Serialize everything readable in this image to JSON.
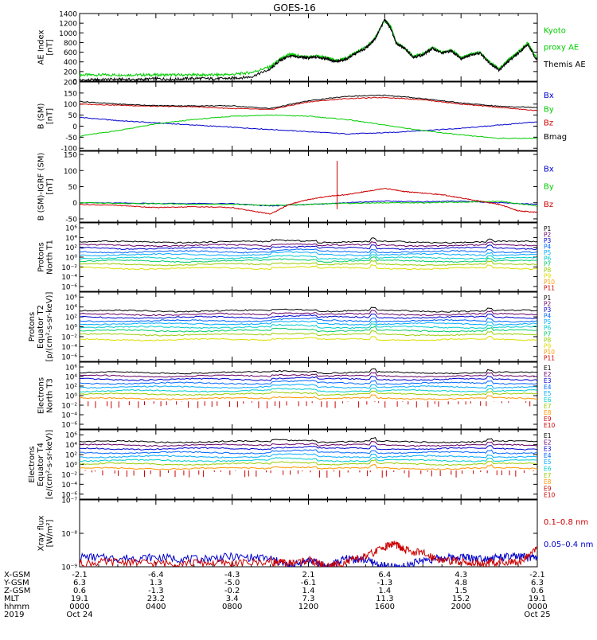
{
  "title": "GOES-16",
  "panels": [
    {
      "id": "ae",
      "ylabel": [
        "AE Index",
        "[nT]"
      ],
      "yticks": [
        "1400",
        "1200",
        "1000",
        "800",
        "600",
        "400",
        "200",
        "0"
      ],
      "yvals": [
        1400,
        1200,
        1000,
        800,
        600,
        400,
        200,
        0
      ],
      "ylim": [
        0,
        1400
      ],
      "legend": [
        {
          "text": "Kyoto",
          "color": "#00cc00"
        },
        {
          "text": "proxy AE",
          "color": "#00cc00"
        },
        {
          "text": "Themis AE",
          "color": "#000000"
        }
      ],
      "series": [
        {
          "name": "Kyoto proxy AE",
          "color": "#00cc00",
          "x": [
            0,
            1,
            2,
            3,
            4,
            5,
            6,
            7,
            8,
            9,
            10,
            10.5,
            11,
            11.5,
            12,
            12.5,
            13,
            13.5,
            14,
            14.5,
            15,
            15.5,
            16,
            16.3,
            16.6,
            17,
            17.5,
            18,
            18.5,
            19,
            19.5,
            20,
            20.5,
            21,
            21.5,
            22,
            22.5,
            23,
            23.5,
            24
          ],
          "y": [
            130,
            130,
            130,
            130,
            130,
            130,
            130,
            130,
            140,
            180,
            300,
            450,
            560,
            520,
            500,
            520,
            480,
            420,
            480,
            600,
            700,
            900,
            1250,
            1150,
            800,
            700,
            520,
            560,
            700,
            600,
            650,
            480,
            560,
            600,
            400,
            250,
            450,
            600,
            800,
            450
          ]
        },
        {
          "name": "Themis AE",
          "color": "#000000",
          "x": [
            0,
            1,
            2,
            3,
            4,
            5,
            6,
            7,
            8,
            9,
            10,
            10.5,
            11,
            11.5,
            12,
            12.5,
            13,
            13.5,
            14,
            14.5,
            15,
            15.5,
            16,
            16.3,
            16.6,
            17,
            17.5,
            18,
            18.5,
            19,
            19.5,
            20,
            20.5,
            21,
            21.5,
            22,
            22.5,
            23,
            23.5,
            24
          ],
          "y": [
            20,
            30,
            40,
            30,
            50,
            40,
            60,
            50,
            60,
            90,
            250,
            430,
            520,
            500,
            480,
            500,
            460,
            400,
            460,
            580,
            680,
            880,
            1280,
            1100,
            780,
            690,
            500,
            540,
            680,
            580,
            630,
            470,
            540,
            580,
            380,
            230,
            420,
            580,
            760,
            420
          ]
        }
      ]
    },
    {
      "id": "bsm",
      "ylabel": [
        "B (SM)",
        "[nT]"
      ],
      "yticks": [
        "200",
        "150",
        "100",
        "50",
        "0",
        "-50",
        "-100"
      ],
      "yvals": [
        200,
        150,
        100,
        50,
        0,
        -50,
        -100
      ],
      "ylim": [
        -110,
        200
      ],
      "legend": [
        {
          "text": "Bx",
          "color": "#0000cc"
        },
        {
          "text": "By",
          "color": "#00cc00"
        },
        {
          "text": "Bz",
          "color": "#cc0000"
        },
        {
          "text": "Bmag",
          "color": "#000000"
        }
      ],
      "series": [
        {
          "name": "Bx",
          "color": "#0000cc",
          "x": [
            0,
            2,
            4,
            6,
            8,
            10,
            12,
            14,
            16,
            18,
            20,
            22,
            24
          ],
          "y": [
            40,
            25,
            15,
            5,
            -5,
            -15,
            -25,
            -35,
            -30,
            -20,
            -10,
            5,
            20
          ]
        },
        {
          "name": "By",
          "color": "#00cc00",
          "x": [
            0,
            2,
            4,
            6,
            8,
            10,
            12,
            14,
            16,
            18,
            20,
            22,
            24
          ],
          "y": [
            -45,
            -20,
            10,
            30,
            45,
            50,
            45,
            30,
            5,
            -20,
            -40,
            -55,
            -55
          ]
        },
        {
          "name": "Bz",
          "color": "#cc0000",
          "x": [
            0,
            2,
            4,
            6,
            8,
            10,
            12,
            14,
            16,
            18,
            20,
            22,
            24
          ],
          "y": [
            100,
            95,
            90,
            88,
            80,
            75,
            110,
            125,
            130,
            120,
            100,
            85,
            70
          ]
        },
        {
          "name": "Bmag",
          "color": "#000000",
          "x": [
            0,
            2,
            4,
            6,
            8,
            10,
            12,
            14,
            16,
            18,
            20,
            22,
            24
          ],
          "y": [
            112,
            100,
            93,
            92,
            92,
            80,
            115,
            135,
            140,
            125,
            105,
            90,
            85
          ]
        }
      ]
    },
    {
      "id": "bigrf",
      "ylabel": [
        "B (SM)-IGRF (SM)",
        "[nT]"
      ],
      "yticks": [
        "150",
        "100",
        "50",
        "0",
        "-50"
      ],
      "yvals": [
        150,
        100,
        50,
        0,
        -50
      ],
      "ylim": [
        -60,
        160
      ],
      "legend": [
        {
          "text": "Bx",
          "color": "#0000cc"
        },
        {
          "text": "By",
          "color": "#00cc00"
        },
        {
          "text": "Bz",
          "color": "#cc0000"
        }
      ],
      "series": [
        {
          "name": "Bx",
          "color": "#0000cc",
          "x": [
            0,
            4,
            8,
            10,
            12,
            14,
            16,
            18,
            20,
            22,
            24
          ],
          "y": [
            0,
            -2,
            -3,
            -10,
            -5,
            0,
            5,
            3,
            5,
            0,
            -5
          ]
        },
        {
          "name": "By",
          "color": "#00cc00",
          "x": [
            0,
            4,
            8,
            10,
            12,
            14,
            16,
            18,
            20,
            22,
            24
          ],
          "y": [
            0,
            -3,
            -5,
            -8,
            -5,
            -2,
            0,
            0,
            2,
            5,
            -10
          ]
        },
        {
          "name": "Bz",
          "color": "#cc0000",
          "x": [
            0,
            2,
            4,
            6,
            8,
            9,
            10,
            11,
            12,
            13,
            14,
            15,
            16,
            17,
            18,
            19,
            20,
            21,
            22,
            23,
            24
          ],
          "y": [
            -5,
            -8,
            -15,
            -12,
            -15,
            -25,
            -35,
            -5,
            10,
            20,
            25,
            35,
            45,
            35,
            30,
            25,
            15,
            5,
            -5,
            -25,
            -30
          ]
        }
      ]
    },
    {
      "id": "pn",
      "ylabel": [
        "Protons",
        "North T1"
      ],
      "log": true,
      "yticks": [
        "10⁶",
        "10⁴",
        "10²",
        "10⁰",
        "10⁻²",
        "10⁻⁴",
        "10⁻⁶"
      ],
      "yvals": [
        6,
        4,
        2,
        0,
        -2,
        -4,
        -6
      ],
      "ylim": [
        -7,
        7
      ],
      "legend": [
        {
          "text": "P1",
          "color": "#000000"
        },
        {
          "text": "P2",
          "color": "#660066"
        },
        {
          "text": "P3",
          "color": "#0000cc"
        },
        {
          "text": "P4",
          "color": "#0066ff"
        },
        {
          "text": "P5",
          "color": "#00aaff"
        },
        {
          "text": "P6",
          "color": "#00cccc"
        },
        {
          "text": "P7",
          "color": "#00cc66"
        },
        {
          "text": "P8",
          "color": "#99cc00"
        },
        {
          "text": "P9",
          "color": "#dddd00"
        },
        {
          "text": "P10",
          "color": "#ff9900"
        },
        {
          "text": "P11",
          "color": "#cc0000"
        }
      ],
      "levels": [
        3.1,
        2.4,
        1.8,
        1.1,
        0.5,
        -0.2,
        -0.8,
        -1.5,
        -2.3
      ],
      "colors": [
        "#000000",
        "#660066",
        "#0000cc",
        "#0066ff",
        "#00aaff",
        "#00cccc",
        "#00cc66",
        "#99cc00",
        "#dddd00"
      ]
    },
    {
      "id": "pe",
      "ylabel": [
        "Protons",
        "Equator T2",
        "[p/(cm²-s-sr-keV)]"
      ],
      "log": true,
      "yticks": [
        "10⁶",
        "10⁴",
        "10²",
        "10⁰",
        "10⁻²",
        "10⁻⁴",
        "10⁻⁶"
      ],
      "yvals": [
        6,
        4,
        2,
        0,
        -2,
        -4,
        -6
      ],
      "ylim": [
        -7,
        7
      ],
      "legend": [
        {
          "text": "P1",
          "color": "#000000"
        },
        {
          "text": "P2",
          "color": "#660066"
        },
        {
          "text": "P3",
          "color": "#0000cc"
        },
        {
          "text": "P4",
          "color": "#0066ff"
        },
        {
          "text": "P5",
          "color": "#00aaff"
        },
        {
          "text": "P6",
          "color": "#00cccc"
        },
        {
          "text": "P7",
          "color": "#00cc66"
        },
        {
          "text": "P8",
          "color": "#99cc00"
        },
        {
          "text": "P9",
          "color": "#dddd00"
        },
        {
          "text": "P10",
          "color": "#ff9900"
        },
        {
          "text": "P11",
          "color": "#cc0000"
        }
      ],
      "levels": [
        3.2,
        2.5,
        1.9,
        1.2,
        0.6,
        -0.1,
        -0.8,
        -1.6,
        -2.6
      ],
      "colors": [
        "#000000",
        "#660066",
        "#0000cc",
        "#0066ff",
        "#00aaff",
        "#00cccc",
        "#00cc66",
        "#99cc00",
        "#dddd00"
      ]
    },
    {
      "id": "en",
      "ylabel": [
        "Electrons",
        "North T3"
      ],
      "log": true,
      "yticks": [
        "10⁶",
        "10⁴",
        "10²",
        "10⁰",
        "10⁻²",
        "10⁻⁴",
        "10⁻⁶"
      ],
      "yvals": [
        6,
        4,
        2,
        0,
        -2,
        -4,
        -6
      ],
      "ylim": [
        -7,
        7
      ],
      "legend": [
        {
          "text": "E1",
          "color": "#000000"
        },
        {
          "text": "E2",
          "color": "#660066"
        },
        {
          "text": "E3",
          "color": "#0000cc"
        },
        {
          "text": "E4",
          "color": "#0066ff"
        },
        {
          "text": "E5",
          "color": "#00aaff"
        },
        {
          "text": "E6",
          "color": "#00cccc"
        },
        {
          "text": "E7",
          "color": "#99cc00"
        },
        {
          "text": "E8",
          "color": "#ff9900"
        },
        {
          "text": "E9",
          "color": "#cc0000"
        },
        {
          "text": "E10",
          "color": "#cc0000"
        }
      ],
      "levels": [
        4.8,
        4.1,
        3.4,
        2.6,
        1.8,
        1.0,
        0.3,
        -0.6
      ],
      "colors": [
        "#000000",
        "#660066",
        "#0000cc",
        "#0066ff",
        "#00aaff",
        "#00cccc",
        "#99cc00",
        "#ff9900"
      ]
    },
    {
      "id": "ee",
      "ylabel": [
        "Electrons",
        "Equator T4",
        "[e/(cm²-s-sr-keV)]"
      ],
      "log": true,
      "yticks": [
        "10⁶",
        "10⁴",
        "10²",
        "10⁰",
        "10⁻²",
        "10⁻⁴",
        "10⁻⁶"
      ],
      "yvals": [
        6,
        4,
        2,
        0,
        -2,
        -4,
        -6
      ],
      "ylim": [
        -7,
        7
      ],
      "legend": [
        {
          "text": "E1",
          "color": "#000000"
        },
        {
          "text": "E2",
          "color": "#660066"
        },
        {
          "text": "E3",
          "color": "#0000cc"
        },
        {
          "text": "E4",
          "color": "#0066ff"
        },
        {
          "text": "E5",
          "color": "#00aaff"
        },
        {
          "text": "E6",
          "color": "#00cccc"
        },
        {
          "text": "E7",
          "color": "#99cc00"
        },
        {
          "text": "E8",
          "color": "#ff9900"
        },
        {
          "text": "E9",
          "color": "#cc0000"
        },
        {
          "text": "E10",
          "color": "#cc0000"
        }
      ],
      "levels": [
        4.6,
        3.9,
        3.2,
        2.4,
        1.6,
        0.8,
        0.1,
        -0.8
      ],
      "colors": [
        "#000000",
        "#660066",
        "#0000cc",
        "#0066ff",
        "#00aaff",
        "#00cccc",
        "#99cc00",
        "#ff9900"
      ]
    },
    {
      "id": "xray",
      "ylabel": [
        "Xray flux",
        "[W/m²]"
      ],
      "log": true,
      "yticks": [
        "10⁻⁷",
        "10⁻⁸",
        "10⁻⁹"
      ],
      "yvals": [
        -7,
        -8,
        -9
      ],
      "ylim": [
        -9,
        -7
      ],
      "legend": [
        {
          "text": "0.1–0.8 nm",
          "color": "#cc0000"
        },
        {
          "text": "0.05–0.4 nm",
          "color": "#0000cc"
        }
      ],
      "series": [
        {
          "name": "0.05–0.4 nm",
          "color": "#0000cc",
          "x": [
            0,
            2,
            4,
            6,
            8,
            10,
            11,
            12,
            13,
            14,
            15,
            16,
            17,
            18,
            19,
            20,
            21,
            22,
            23,
            24
          ],
          "y": [
            -8.7,
            -8.75,
            -8.72,
            -8.78,
            -8.7,
            -8.75,
            -9,
            -8.8,
            -9,
            -8.75,
            -8.8,
            -9,
            -9,
            -8.8,
            -8.75,
            -8.7,
            -8.75,
            -8.72,
            -8.7,
            -8.75
          ]
        },
        {
          "name": "0.1–0.8 nm",
          "color": "#cc0000",
          "x": [
            0,
            2,
            4,
            6,
            8,
            10,
            11,
            12,
            13,
            14,
            15,
            16,
            16.5,
            17,
            18,
            19,
            20,
            21,
            22,
            23,
            24
          ],
          "y": [
            -8.9,
            -8.85,
            -8.9,
            -8.88,
            -8.9,
            -8.85,
            -8.9,
            -8.8,
            -9,
            -8.85,
            -8.7,
            -8.4,
            -8.3,
            -8.5,
            -8.6,
            -8.8,
            -8.85,
            -8.9,
            -8.85,
            -8.9,
            -8.4
          ]
        }
      ]
    }
  ],
  "x_ticks": {
    "rows": [
      {
        "label": "X-GSM",
        "values": [
          "-2.1",
          "-6.4",
          "-4.3",
          "2.1",
          "6.4",
          "4.3",
          "-2.1"
        ]
      },
      {
        "label": "Y-GSM",
        "values": [
          "6.3",
          "1.3",
          "-5.0",
          "-6.1",
          "-1.3",
          "4.8",
          "6.3"
        ]
      },
      {
        "label": "Z-GSM",
        "values": [
          "0.6",
          "-1.3",
          "-0.2",
          "1.4",
          "1.4",
          "1.5",
          "0.6"
        ]
      },
      {
        "label": "MLT",
        "values": [
          "19.1",
          "23.2",
          "3.4",
          "7.3",
          "11.3",
          "15.2",
          "19.1"
        ]
      },
      {
        "label": "hhmm",
        "values": [
          "0000",
          "0400",
          "0800",
          "1200",
          "1600",
          "2000",
          "0000"
        ]
      }
    ],
    "year": "2019",
    "dates": [
      "Oct 24",
      "Oct 25"
    ]
  },
  "chart_data": {
    "type": "line",
    "title": "GOES-16",
    "x_hours": [
      0,
      4,
      8,
      12,
      16,
      20,
      24
    ],
    "x_tick_labels": [
      "0000",
      "0400",
      "0800",
      "1200",
      "1600",
      "2000",
      "0000"
    ],
    "panels": [
      "AE Index",
      "B (SM)",
      "B (SM)-IGRF (SM)",
      "Protons North T1",
      "Protons Equator T2",
      "Electrons North T3",
      "Electrons Equator T4",
      "Xray flux"
    ]
  }
}
